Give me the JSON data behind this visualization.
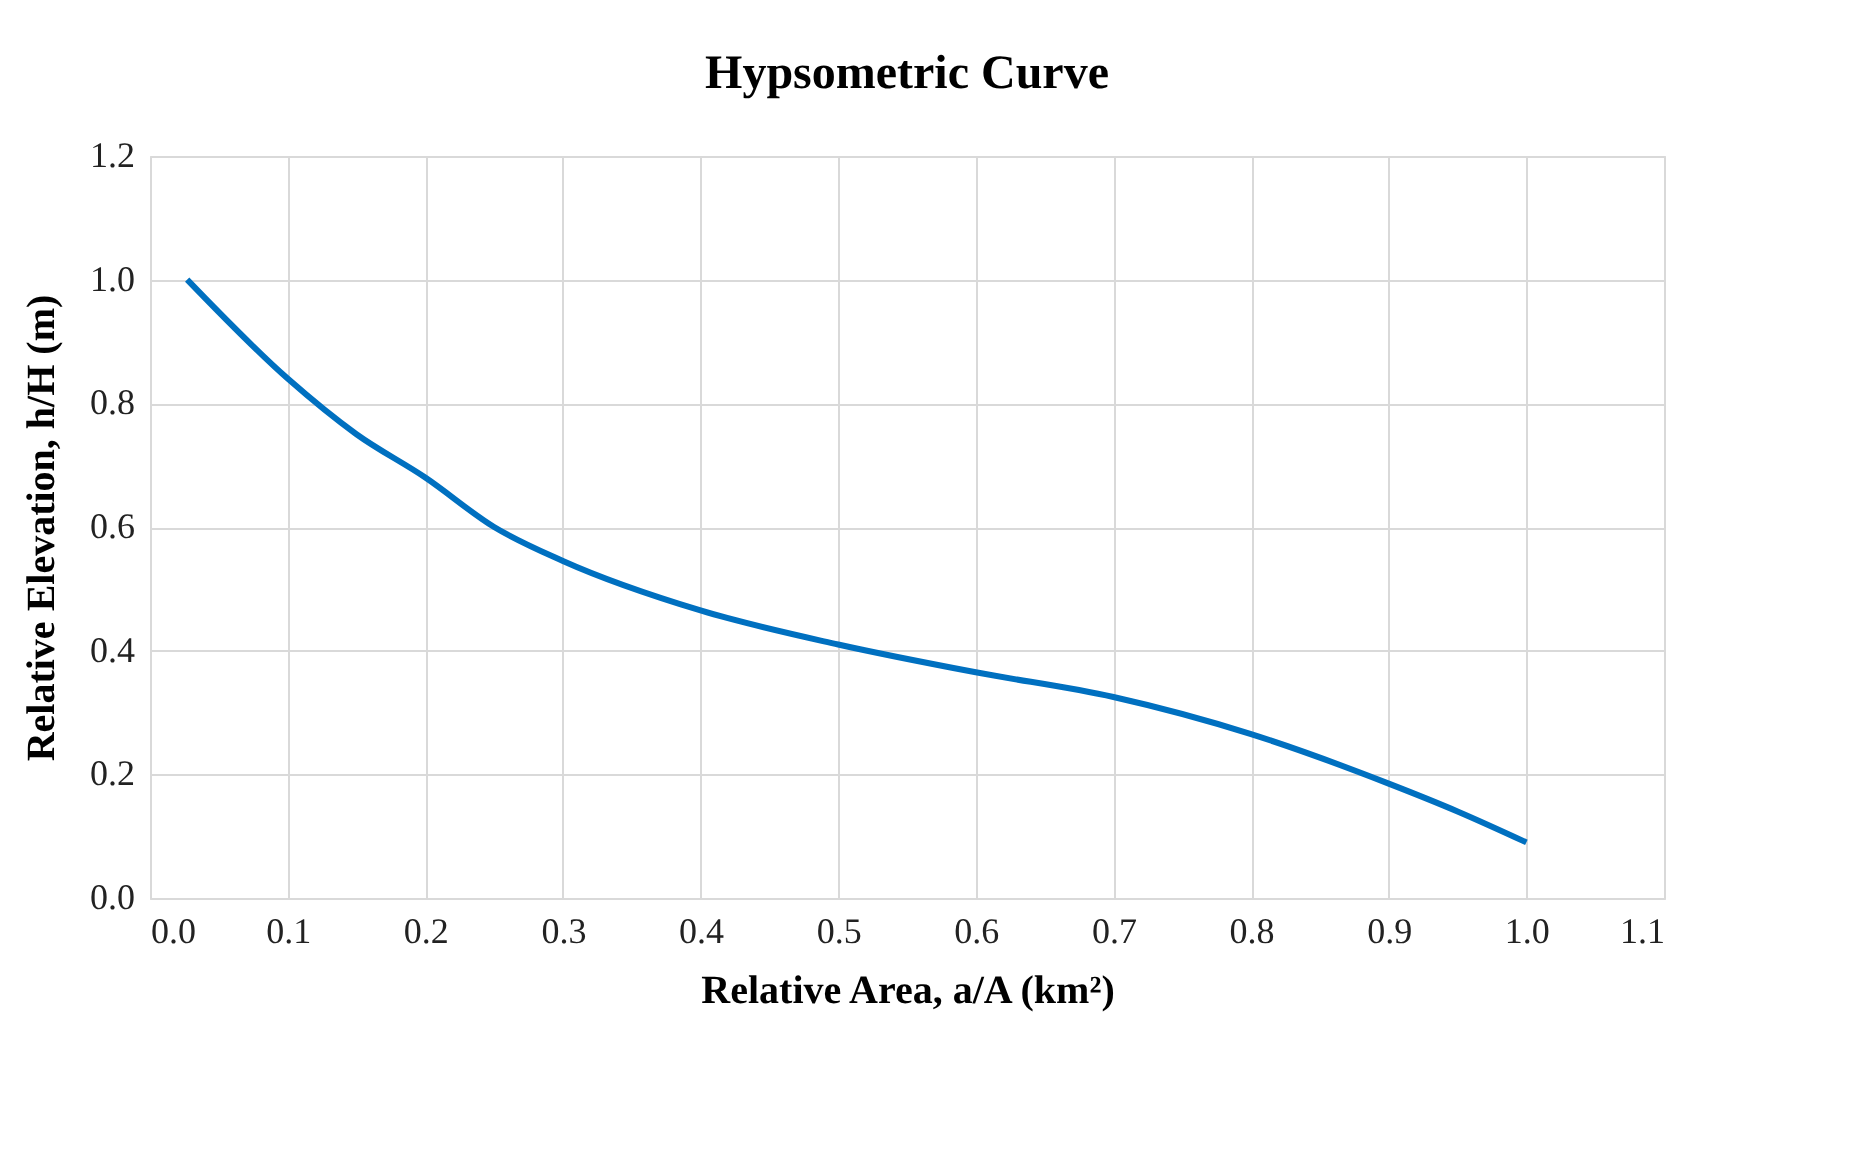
{
  "chart_data": {
    "type": "line",
    "title": "Hypsometric Curve",
    "xlabel": "Relative Area, a/A (km²)",
    "ylabel": "Relative Elevation, h/H (m)",
    "x": [
      0.027,
      0.1,
      0.15,
      0.2,
      0.25,
      0.3,
      0.4,
      0.5,
      0.6,
      0.7,
      0.8,
      0.9,
      0.95,
      1.0
    ],
    "series": [
      {
        "color": "#0070c0",
        "values": [
          1.0,
          0.84,
          0.75,
          0.68,
          0.6,
          0.545,
          0.465,
          0.41,
          0.365,
          0.325,
          0.265,
          0.185,
          0.14,
          0.09
        ]
      }
    ],
    "xlim": [
      0,
      1.1
    ],
    "ylim": [
      0,
      1.2
    ],
    "xticks": [
      {
        "value": 0,
        "label": "0.0"
      },
      0.1,
      0.2,
      0.3,
      0.4,
      0.5,
      0.6,
      0.7,
      0.8,
      0.9,
      {
        "value": 1,
        "label": "1.0"
      },
      1.1
    ],
    "yticks": [
      {
        "value": 0,
        "label": "0.0"
      },
      0.2,
      0.4,
      0.6,
      0.8,
      {
        "value": 1,
        "label": "1.0"
      },
      1.2
    ],
    "grid": true,
    "marker": "none",
    "line_style": "solid"
  }
}
